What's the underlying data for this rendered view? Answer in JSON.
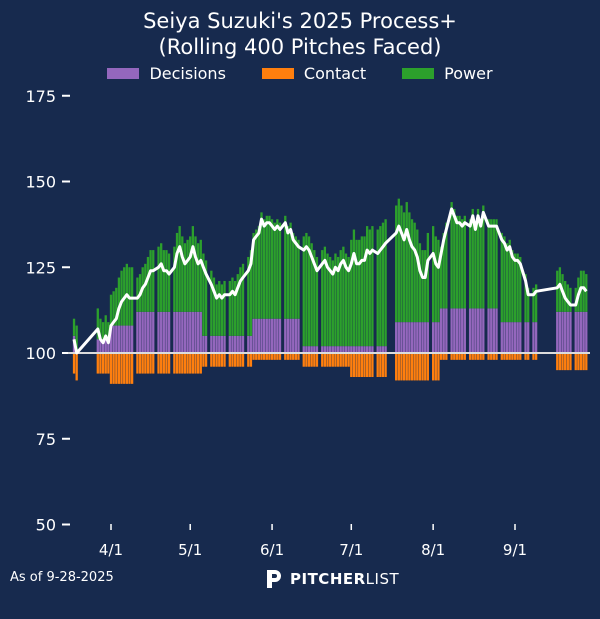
{
  "chart_data": {
    "type": "bar",
    "title": "Seiya Suzuki's 2025 Process+",
    "subtitle": "(Rolling 400 Pitches Faced)",
    "baseline": 100,
    "ylim": [
      50,
      175
    ],
    "yticks": [
      50,
      75,
      100,
      125,
      150,
      175
    ],
    "xticks": [
      "4/1",
      "5/1",
      "6/1",
      "7/1",
      "8/1",
      "9/1"
    ],
    "year": 2025,
    "grid": false,
    "legend_position": "top",
    "series_names": [
      "Decisions",
      "Contact",
      "Power"
    ],
    "colors": {
      "Decisions": "#9467bd",
      "Contact": "#ff7f0e",
      "Power": "#2ca02c",
      "line": "#ffffff",
      "background": "#172a4e"
    },
    "fields": [
      "date",
      "decisions",
      "contact",
      "power"
    ],
    "rows": [
      [
        "3/18",
        5,
        -6,
        5
      ],
      [
        "3/19",
        1,
        -8,
        7
      ],
      [
        "3/27",
        4,
        -6,
        9
      ],
      [
        "3/28",
        4,
        -6,
        6
      ],
      [
        "3/29",
        4,
        -6,
        5
      ],
      [
        "3/30",
        4,
        -6,
        7
      ],
      [
        "3/31",
        4,
        -6,
        5
      ],
      [
        "4/1",
        8,
        -9,
        9
      ],
      [
        "4/2",
        8,
        -9,
        10
      ],
      [
        "4/3",
        8,
        -9,
        11
      ],
      [
        "4/4",
        8,
        -9,
        14
      ],
      [
        "4/5",
        8,
        -9,
        16
      ],
      [
        "4/6",
        8,
        -9,
        17
      ],
      [
        "4/7",
        8,
        -9,
        18
      ],
      [
        "4/8",
        8,
        -9,
        17
      ],
      [
        "4/9",
        8,
        -9,
        17
      ],
      [
        "4/11",
        12,
        -6,
        10
      ],
      [
        "4/12",
        12,
        -6,
        11
      ],
      [
        "4/13",
        12,
        -6,
        13
      ],
      [
        "4/14",
        12,
        -6,
        14
      ],
      [
        "4/15",
        12,
        -6,
        16
      ],
      [
        "4/16",
        12,
        -6,
        18
      ],
      [
        "4/17",
        12,
        -6,
        18
      ],
      [
        "4/19",
        12,
        -6,
        19
      ],
      [
        "4/20",
        12,
        -6,
        20
      ],
      [
        "4/21",
        12,
        -6,
        18
      ],
      [
        "4/22",
        12,
        -6,
        18
      ],
      [
        "4/23",
        12,
        -6,
        17
      ],
      [
        "4/25",
        12,
        -6,
        19
      ],
      [
        "4/26",
        12,
        -6,
        23
      ],
      [
        "4/27",
        12,
        -6,
        25
      ],
      [
        "4/28",
        12,
        -6,
        22
      ],
      [
        "4/29",
        12,
        -6,
        20
      ],
      [
        "4/30",
        12,
        -6,
        21
      ],
      [
        "5/1",
        12,
        -6,
        22
      ],
      [
        "5/2",
        12,
        -6,
        25
      ],
      [
        "5/3",
        12,
        -6,
        22
      ],
      [
        "5/4",
        12,
        -6,
        20
      ],
      [
        "5/5",
        12,
        -6,
        21
      ],
      [
        "5/6",
        5,
        -4,
        24
      ],
      [
        "5/7",
        5,
        -4,
        22
      ],
      [
        "5/9",
        5,
        -4,
        19
      ],
      [
        "5/10",
        5,
        -4,
        17
      ],
      [
        "5/11",
        5,
        -4,
        15
      ],
      [
        "5/12",
        5,
        -4,
        16
      ],
      [
        "5/13",
        5,
        -4,
        15
      ],
      [
        "5/14",
        5,
        -4,
        16
      ],
      [
        "5/16",
        5,
        -4,
        16
      ],
      [
        "5/17",
        5,
        -4,
        17
      ],
      [
        "5/18",
        5,
        -4,
        16
      ],
      [
        "5/19",
        5,
        -4,
        18
      ],
      [
        "5/20",
        5,
        -4,
        20
      ],
      [
        "5/21",
        5,
        -4,
        21
      ],
      [
        "5/23",
        5,
        -4,
        23
      ],
      [
        "5/24",
        5,
        -4,
        25
      ],
      [
        "5/25",
        10,
        -2,
        25
      ],
      [
        "5/26",
        10,
        -2,
        26
      ],
      [
        "5/27",
        10,
        -2,
        27
      ],
      [
        "5/28",
        10,
        -2,
        31
      ],
      [
        "5/29",
        10,
        -2,
        29
      ],
      [
        "5/30",
        10,
        -2,
        30
      ],
      [
        "5/31",
        10,
        -2,
        30
      ],
      [
        "6/1",
        10,
        -2,
        29
      ],
      [
        "6/2",
        10,
        -2,
        28
      ],
      [
        "6/3",
        10,
        -2,
        29
      ],
      [
        "6/4",
        10,
        -2,
        28
      ],
      [
        "6/6",
        10,
        -2,
        30
      ],
      [
        "6/7",
        10,
        -2,
        27
      ],
      [
        "6/8",
        10,
        -2,
        28
      ],
      [
        "6/9",
        10,
        -2,
        25
      ],
      [
        "6/10",
        10,
        -2,
        24
      ],
      [
        "6/11",
        10,
        -2,
        23
      ],
      [
        "6/13",
        2,
        -4,
        32
      ],
      [
        "6/14",
        2,
        -4,
        33
      ],
      [
        "6/15",
        2,
        -4,
        32
      ],
      [
        "6/16",
        2,
        -4,
        30
      ],
      [
        "6/17",
        2,
        -4,
        28
      ],
      [
        "6/18",
        2,
        -4,
        26
      ],
      [
        "6/20",
        2,
        -4,
        28
      ],
      [
        "6/21",
        2,
        -4,
        29
      ],
      [
        "6/22",
        2,
        -4,
        27
      ],
      [
        "6/23",
        2,
        -4,
        26
      ],
      [
        "6/24",
        2,
        -4,
        25
      ],
      [
        "6/25",
        2,
        -4,
        27
      ],
      [
        "6/26",
        2,
        -4,
        26
      ],
      [
        "6/27",
        2,
        -4,
        28
      ],
      [
        "6/28",
        2,
        -4,
        29
      ],
      [
        "6/29",
        2,
        -4,
        27
      ],
      [
        "6/30",
        2,
        -4,
        26
      ],
      [
        "7/1",
        2,
        -7,
        31
      ],
      [
        "7/2",
        2,
        -7,
        34
      ],
      [
        "7/3",
        2,
        -7,
        31
      ],
      [
        "7/4",
        2,
        -7,
        31
      ],
      [
        "7/5",
        2,
        -7,
        32
      ],
      [
        "7/6",
        2,
        -7,
        32
      ],
      [
        "7/7",
        2,
        -7,
        35
      ],
      [
        "7/8",
        2,
        -7,
        34
      ],
      [
        "7/9",
        2,
        -7,
        35
      ],
      [
        "7/11",
        2,
        -7,
        34
      ],
      [
        "7/12",
        2,
        -7,
        35
      ],
      [
        "7/13",
        2,
        -7,
        36
      ],
      [
        "7/14",
        2,
        -7,
        37
      ],
      [
        "7/18",
        9,
        -8,
        34
      ],
      [
        "7/19",
        9,
        -8,
        36
      ],
      [
        "7/20",
        9,
        -8,
        34
      ],
      [
        "7/21",
        9,
        -8,
        32
      ],
      [
        "7/22",
        9,
        -8,
        35
      ],
      [
        "7/23",
        9,
        -8,
        32
      ],
      [
        "7/24",
        9,
        -8,
        30
      ],
      [
        "7/25",
        9,
        -8,
        29
      ],
      [
        "7/26",
        9,
        -8,
        27
      ],
      [
        "7/27",
        9,
        -8,
        23
      ],
      [
        "7/28",
        9,
        -8,
        21
      ],
      [
        "7/29",
        9,
        -8,
        21
      ],
      [
        "7/30",
        9,
        -8,
        26
      ],
      [
        "8/1",
        9,
        -8,
        28
      ],
      [
        "8/2",
        9,
        -8,
        25
      ],
      [
        "8/3",
        9,
        -8,
        24
      ],
      [
        "8/4",
        13,
        -2,
        18
      ],
      [
        "8/5",
        13,
        -2,
        22
      ],
      [
        "8/6",
        13,
        -2,
        25
      ],
      [
        "8/8",
        13,
        -2,
        31
      ],
      [
        "8/9",
        13,
        -2,
        29
      ],
      [
        "8/10",
        13,
        -2,
        27
      ],
      [
        "8/11",
        13,
        -2,
        27
      ],
      [
        "8/12",
        13,
        -2,
        26
      ],
      [
        "8/13",
        13,
        -2,
        27
      ],
      [
        "8/15",
        13,
        -2,
        26
      ],
      [
        "8/16",
        13,
        -2,
        29
      ],
      [
        "8/17",
        13,
        -2,
        25
      ],
      [
        "8/18",
        13,
        -2,
        29
      ],
      [
        "8/19",
        13,
        -2,
        26
      ],
      [
        "8/20",
        13,
        -2,
        30
      ],
      [
        "8/22",
        13,
        -2,
        26
      ],
      [
        "8/23",
        13,
        -2,
        26
      ],
      [
        "8/24",
        13,
        -2,
        26
      ],
      [
        "8/25",
        13,
        -2,
        26
      ],
      [
        "8/27",
        9,
        -2,
        26
      ],
      [
        "8/28",
        9,
        -2,
        25
      ],
      [
        "8/29",
        9,
        -2,
        23
      ],
      [
        "8/30",
        9,
        -2,
        24
      ],
      [
        "8/31",
        9,
        -2,
        21
      ],
      [
        "9/1",
        9,
        -2,
        20
      ],
      [
        "9/2",
        9,
        -2,
        20
      ],
      [
        "9/3",
        9,
        -2,
        19
      ],
      [
        "9/5",
        9,
        -2,
        14
      ],
      [
        "9/6",
        9,
        -2,
        10
      ],
      [
        "9/8",
        9,
        -2,
        10
      ],
      [
        "9/9",
        9,
        -2,
        11
      ],
      [
        "9/17",
        12,
        -5,
        12
      ],
      [
        "9/18",
        12,
        -5,
        13
      ],
      [
        "9/19",
        12,
        -5,
        11
      ],
      [
        "9/20",
        12,
        -5,
        9
      ],
      [
        "9/21",
        12,
        -5,
        8
      ],
      [
        "9/22",
        12,
        -5,
        7
      ],
      [
        "9/24",
        12,
        -5,
        7
      ],
      [
        "9/25",
        12,
        -5,
        10
      ],
      [
        "9/26",
        12,
        -5,
        12
      ],
      [
        "9/27",
        12,
        -5,
        12
      ],
      [
        "9/28",
        12,
        -5,
        11
      ]
    ]
  },
  "legend": {
    "decisions": "Decisions",
    "contact": "Contact",
    "power": "Power"
  },
  "footer": {
    "as_of": "As of 9-28-2025",
    "logo_bold": "PITCHER",
    "logo_light": "LIST"
  }
}
